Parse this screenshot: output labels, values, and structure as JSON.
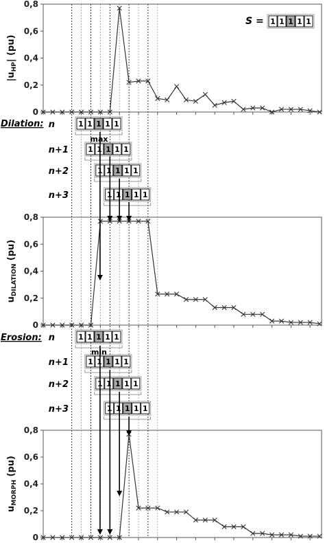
{
  "panels": [
    {
      "id": "hp",
      "ylabel_main": "|u",
      "ylabel_sub": "HP",
      "ylabel_end": "| (pu)",
      "yticks": [
        "0",
        "0,2",
        "0,4",
        "0,6",
        "0,8"
      ],
      "values": [
        0,
        0,
        0,
        0,
        0,
        0,
        0,
        0,
        0.77,
        0.22,
        0.23,
        0.23,
        0.1,
        0.09,
        0.19,
        0.09,
        0.08,
        0.13,
        0.05,
        0.07,
        0.08,
        0.02,
        0.03,
        0.03,
        0.0,
        0.02,
        0.02,
        0.02,
        0.01,
        0
      ]
    },
    {
      "id": "dilation",
      "ylabel_main": "u",
      "ylabel_sub": "DILATION",
      "ylabel_end": " (pu)",
      "yticks": [
        "0",
        "0,2",
        "0,4",
        "0,6",
        "0,8"
      ],
      "values": [
        0,
        0,
        0,
        0,
        0,
        0,
        0.77,
        0.77,
        0.77,
        0.77,
        0.77,
        0.77,
        0.23,
        0.23,
        0.23,
        0.19,
        0.19,
        0.19,
        0.13,
        0.13,
        0.13,
        0.08,
        0.08,
        0.08,
        0.03,
        0.03,
        0.02,
        0.02,
        0.02,
        0.01
      ]
    },
    {
      "id": "morph",
      "ylabel_main": "u",
      "ylabel_sub": "MORPH",
      "ylabel_end": " (pu)",
      "yticks": [
        "0",
        "0,2",
        "0,4",
        "0,6",
        "0,8"
      ],
      "values": [
        0,
        0,
        0,
        0,
        0,
        0,
        0,
        0,
        0,
        0.77,
        0.22,
        0.22,
        0.22,
        0.19,
        0.19,
        0.19,
        0.13,
        0.13,
        0.13,
        0.08,
        0.08,
        0.08,
        0.03,
        0.03,
        0.02,
        0.02,
        0.02,
        0.01,
        0.01,
        0.01
      ]
    }
  ],
  "structuring_element": {
    "label": "S =",
    "cells": [
      "1",
      "1",
      "1",
      "1",
      "1"
    ],
    "center_index": 2
  },
  "dilation": {
    "title": "Dilation:",
    "func": "max",
    "steps": [
      "n",
      "n+1",
      "n+2",
      "n+3"
    ]
  },
  "erosion": {
    "title": "Erosion:",
    "func": "min",
    "steps": [
      "n",
      "n+1",
      "n+2",
      "n+3"
    ]
  }
}
